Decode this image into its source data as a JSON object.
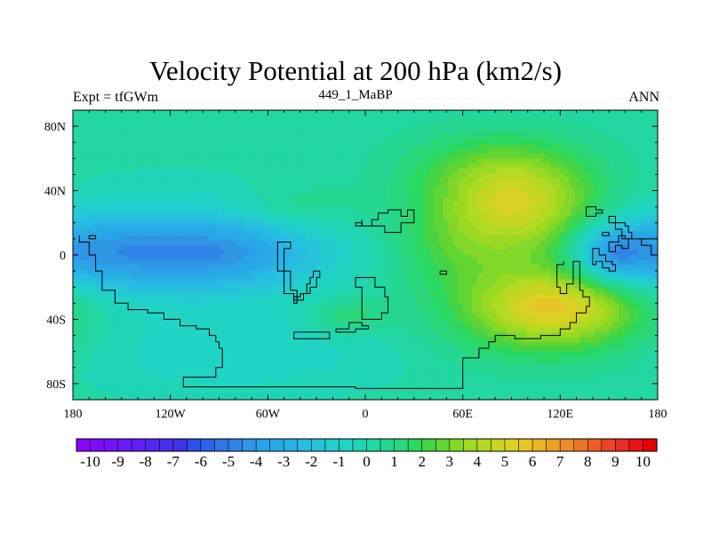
{
  "chart_data": {
    "type": "heatmap",
    "title": "Velocity Potential at 200 hPa (km2/s)",
    "left_string": "Expt = tfGWm",
    "center_string": "449_1_MaBP",
    "right_string": "ANN",
    "x_ticks": [
      {
        "value": -180,
        "label": "180"
      },
      {
        "value": -120,
        "label": "120W"
      },
      {
        "value": -60,
        "label": "60W"
      },
      {
        "value": 0,
        "label": "0"
      },
      {
        "value": 60,
        "label": "60E"
      },
      {
        "value": 120,
        "label": "120E"
      },
      {
        "value": 180,
        "label": "180"
      }
    ],
    "y_ticks": [
      {
        "value": 80,
        "label": "80N"
      },
      {
        "value": 40,
        "label": "40N"
      },
      {
        "value": 0,
        "label": "0"
      },
      {
        "value": -40,
        "label": "40S"
      },
      {
        "value": -80,
        "label": "80S"
      }
    ],
    "xlim": [
      -180,
      180
    ],
    "ylim": [
      -90,
      90
    ],
    "colorbar": {
      "labels": [
        "-10",
        "-9",
        "-8",
        "-7",
        "-6",
        "-5",
        "-4",
        "-3",
        "-2",
        "-1",
        "0",
        "1",
        "2",
        "3",
        "4",
        "5",
        "6",
        "7",
        "8",
        "9",
        "10"
      ],
      "min": -10.5,
      "max": 10.5,
      "step": 0.5,
      "colors": [
        "#8a05ff",
        "#7f0cff",
        "#7412ff",
        "#6a19ff",
        "#5f20f9",
        "#5426f3",
        "#4a2dec",
        "#3e33e6",
        "#2f4fe5",
        "#2a63e6",
        "#2f78e4",
        "#3084e7",
        "#2f95e5",
        "#2aa3ea",
        "#28abe4",
        "#29b2e6",
        "#27bce2",
        "#26c3da",
        "#23cdd0",
        "#20d4c4",
        "#1fd5b6",
        "#22d7a2",
        "#25d790",
        "#29d77a",
        "#2ad862",
        "#44d445",
        "#61d433",
        "#82d828",
        "#9bd923",
        "#b2da22",
        "#c6d622",
        "#d9d124",
        "#e8c526",
        "#e9b427",
        "#eba127",
        "#ec8c27",
        "#ec7627",
        "#ec5e26",
        "#eb4525",
        "#eb2c22",
        "#e9141a",
        "#e50000"
      ]
    },
    "field_description": "Annual-mean 200 hPa velocity potential; negative (blue) centers over the central/eastern Pacific near the equator and the western Pacific/Indonesia region, positive (yellow-green) centers over the Middle East/Indian Ocean north of the equator and over the southern Indian Ocean/Australia.",
    "blobs": [
      {
        "lon": -125,
        "lat": 0,
        "ax": 70,
        "ay": 16,
        "amp": -3.9
      },
      {
        "lon": -82,
        "lat": 2,
        "ax": 30,
        "ay": 12,
        "amp": -0.9
      },
      {
        "lon": -160,
        "lat": 6,
        "ax": 28,
        "ay": 18,
        "amp": -0.6
      },
      {
        "lon": -115,
        "lat": 22,
        "ax": 60,
        "ay": 18,
        "amp": -0.8
      },
      {
        "lon": -110,
        "lat": -40,
        "ax": 70,
        "ay": 20,
        "amp": -0.6
      },
      {
        "lon": -40,
        "lat": -58,
        "ax": 60,
        "ay": 18,
        "amp": -0.5
      },
      {
        "lon": -95,
        "lat": -70,
        "ax": 55,
        "ay": 14,
        "amp": -0.6
      },
      {
        "lon": 150,
        "lat": 0,
        "ax": 14,
        "ay": 12,
        "amp": -2.7
      },
      {
        "lon": 165,
        "lat": 2,
        "ax": 22,
        "ay": 16,
        "amp": -1.2
      },
      {
        "lon": 95,
        "lat": 35,
        "ax": 35,
        "ay": 22,
        "amp": 3.6
      },
      {
        "lon": 85,
        "lat": 8,
        "ax": 42,
        "ay": 24,
        "amp": 2.0
      },
      {
        "lon": 70,
        "lat": 55,
        "ax": 40,
        "ay": 16,
        "amp": 1.1
      },
      {
        "lon": 120,
        "lat": -30,
        "ax": 38,
        "ay": 16,
        "amp": 4.0
      },
      {
        "lon": 110,
        "lat": -45,
        "ax": 45,
        "ay": 18,
        "amp": 1.8
      },
      {
        "lon": -12,
        "lat": -38,
        "ax": 18,
        "ay": 8,
        "amp": 1.4
      },
      {
        "lon": -40,
        "lat": 30,
        "ax": 25,
        "ay": 10,
        "amp": 0.9
      },
      {
        "lon": 40,
        "lat": 0,
        "ax": 25,
        "ay": 20,
        "amp": 0.6
      }
    ],
    "coastlines": [
      [
        [
          -176,
          12
        ],
        [
          -176,
          8
        ],
        [
          -170,
          8
        ],
        [
          -170,
          0
        ],
        [
          -166,
          0
        ],
        [
          -166,
          -10
        ],
        [
          -162,
          -10
        ],
        [
          -162,
          -22
        ],
        [
          -154,
          -22
        ],
        [
          -154,
          -30
        ],
        [
          -146,
          -30
        ],
        [
          -146,
          -34
        ],
        [
          -134,
          -34
        ],
        [
          -134,
          -36
        ],
        [
          -124,
          -36
        ],
        [
          -124,
          -40
        ],
        [
          -114,
          -40
        ],
        [
          -114,
          -44
        ],
        [
          -104,
          -44
        ],
        [
          -104,
          -46
        ],
        [
          -96,
          -46
        ],
        [
          -96,
          -50
        ],
        [
          -92,
          -50
        ],
        [
          -92,
          -54
        ],
        [
          -90,
          -54
        ],
        [
          -90,
          -58
        ],
        [
          -88,
          -58
        ],
        [
          -88,
          -70
        ],
        [
          -92,
          -70
        ],
        [
          -92,
          -76
        ],
        [
          -112,
          -76
        ],
        [
          -112,
          -82
        ],
        [
          -6,
          -82
        ],
        [
          -6,
          -83
        ],
        [
          60,
          -83
        ],
        [
          60,
          -64
        ],
        [
          70,
          -64
        ],
        [
          70,
          -58
        ],
        [
          76,
          -58
        ],
        [
          76,
          -54
        ],
        [
          80,
          -54
        ],
        [
          80,
          -50
        ],
        [
          92,
          -50
        ],
        [
          92,
          -52
        ],
        [
          108,
          -52
        ],
        [
          108,
          -50
        ],
        [
          120,
          -50
        ],
        [
          120,
          -46
        ],
        [
          126,
          -46
        ],
        [
          126,
          -42
        ],
        [
          130,
          -42
        ],
        [
          130,
          -36
        ],
        [
          136,
          -36
        ],
        [
          136,
          -32
        ],
        [
          138,
          -32
        ],
        [
          138,
          -26
        ],
        [
          134,
          -26
        ],
        [
          134,
          -22
        ],
        [
          132,
          -22
        ],
        [
          132,
          -4
        ],
        [
          128,
          -4
        ],
        [
          128,
          -18
        ],
        [
          124,
          -18
        ],
        [
          124,
          -24
        ],
        [
          120,
          -24
        ],
        [
          120,
          -20
        ],
        [
          118,
          -20
        ],
        [
          118,
          -6
        ],
        [
          122,
          -6
        ],
        [
          122,
          -4
        ]
      ],
      [
        [
          -166,
          10
        ],
        [
          -166,
          12
        ],
        [
          -170,
          12
        ],
        [
          -170,
          10
        ],
        [
          -166,
          10
        ]
      ],
      [
        [
          -54,
          8
        ],
        [
          -54,
          -10
        ],
        [
          -50,
          -10
        ],
        [
          -50,
          -24
        ],
        [
          -44,
          -24
        ],
        [
          -44,
          -30
        ],
        [
          -42,
          -30
        ],
        [
          -42,
          -22
        ],
        [
          -46,
          -22
        ],
        [
          -46,
          -10
        ],
        [
          -50,
          -10
        ],
        [
          -50,
          4
        ],
        [
          -46,
          4
        ],
        [
          -46,
          8
        ],
        [
          -54,
          8
        ]
      ],
      [
        [
          -36,
          -18
        ],
        [
          -36,
          -24
        ],
        [
          -40,
          -24
        ],
        [
          -40,
          -26
        ],
        [
          -44,
          -26
        ],
        [
          -44,
          -28
        ],
        [
          -38,
          -28
        ],
        [
          -38,
          -24
        ],
        [
          -34,
          -24
        ],
        [
          -34,
          -20
        ],
        [
          -30,
          -20
        ],
        [
          -30,
          -14
        ],
        [
          -28,
          -14
        ],
        [
          -28,
          -10
        ],
        [
          -32,
          -10
        ],
        [
          -32,
          -14
        ],
        [
          -34,
          -14
        ],
        [
          -34,
          -18
        ],
        [
          -36,
          -18
        ]
      ],
      [
        [
          -44,
          -48
        ],
        [
          -44,
          -52
        ],
        [
          -22,
          -52
        ],
        [
          -22,
          -48
        ],
        [
          -44,
          -48
        ]
      ],
      [
        [
          -6,
          -46
        ],
        [
          -6,
          -48
        ],
        [
          -18,
          -48
        ],
        [
          -18,
          -46
        ],
        [
          -10,
          -46
        ],
        [
          -10,
          -42
        ],
        [
          -2,
          -42
        ],
        [
          -2,
          -44
        ],
        [
          2,
          -44
        ],
        [
          2,
          -46
        ],
        [
          -6,
          -46
        ]
      ],
      [
        [
          -2,
          -24
        ],
        [
          -2,
          -40
        ],
        [
          10,
          -40
        ],
        [
          10,
          -36
        ],
        [
          14,
          -36
        ],
        [
          14,
          -26
        ],
        [
          12,
          -26
        ],
        [
          12,
          -20
        ],
        [
          6,
          -20
        ],
        [
          6,
          -14
        ],
        [
          -6,
          -14
        ],
        [
          -6,
          -20
        ],
        [
          -2,
          -20
        ],
        [
          -2,
          -24
        ]
      ],
      [
        [
          -2,
          22
        ],
        [
          -2,
          18
        ],
        [
          4,
          18
        ],
        [
          4,
          22
        ],
        [
          8,
          22
        ],
        [
          8,
          26
        ],
        [
          14,
          26
        ],
        [
          14,
          28
        ],
        [
          22,
          28
        ],
        [
          22,
          24
        ],
        [
          26,
          24
        ],
        [
          26,
          28
        ],
        [
          30,
          28
        ],
        [
          30,
          20
        ],
        [
          22,
          20
        ],
        [
          22,
          14
        ],
        [
          12,
          14
        ],
        [
          12,
          18
        ],
        [
          4,
          18
        ]
      ],
      [
        [
          -6,
          20
        ],
        [
          -6,
          18
        ],
        [
          -2,
          18
        ],
        [
          -2,
          20
        ],
        [
          -6,
          20
        ]
      ],
      [
        [
          46,
          -10
        ],
        [
          46,
          -12
        ],
        [
          50,
          -12
        ],
        [
          50,
          -10
        ],
        [
          46,
          -10
        ]
      ],
      [
        [
          136,
          30
        ],
        [
          136,
          24
        ],
        [
          142,
          24
        ],
        [
          142,
          26
        ],
        [
          146,
          26
        ],
        [
          146,
          28
        ],
        [
          142,
          28
        ],
        [
          142,
          30
        ],
        [
          136,
          30
        ]
      ],
      [
        [
          154,
          24
        ],
        [
          154,
          20
        ],
        [
          160,
          20
        ],
        [
          160,
          18
        ],
        [
          162,
          18
        ],
        [
          162,
          14
        ],
        [
          164,
          14
        ],
        [
          164,
          10
        ],
        [
          180,
          10
        ],
        [
          180,
          0
        ],
        [
          176,
          0
        ],
        [
          176,
          6
        ],
        [
          170,
          6
        ],
        [
          170,
          10
        ],
        [
          160,
          10
        ],
        [
          160,
          12
        ],
        [
          156,
          12
        ],
        [
          156,
          8
        ],
        [
          150,
          8
        ],
        [
          150,
          2
        ],
        [
          154,
          2
        ],
        [
          154,
          6
        ],
        [
          158,
          6
        ],
        [
          158,
          4
        ],
        [
          162,
          4
        ],
        [
          162,
          10
        ],
        [
          158,
          10
        ],
        [
          158,
          16
        ],
        [
          154,
          16
        ],
        [
          154,
          20
        ],
        [
          150,
          20
        ],
        [
          150,
          24
        ],
        [
          154,
          24
        ]
      ],
      [
        [
          146,
          14
        ],
        [
          146,
          12
        ],
        [
          150,
          12
        ],
        [
          150,
          14
        ],
        [
          146,
          14
        ]
      ],
      [
        [
          154,
          -10
        ],
        [
          154,
          -6
        ],
        [
          152,
          -6
        ],
        [
          152,
          -4
        ],
        [
          148,
          -4
        ],
        [
          148,
          0
        ],
        [
          144,
          0
        ],
        [
          144,
          4
        ],
        [
          140,
          4
        ],
        [
          140,
          -6
        ],
        [
          142,
          -6
        ],
        [
          142,
          -4
        ],
        [
          146,
          -4
        ],
        [
          146,
          -8
        ],
        [
          150,
          -8
        ],
        [
          150,
          -10
        ],
        [
          154,
          -10
        ]
      ]
    ]
  }
}
